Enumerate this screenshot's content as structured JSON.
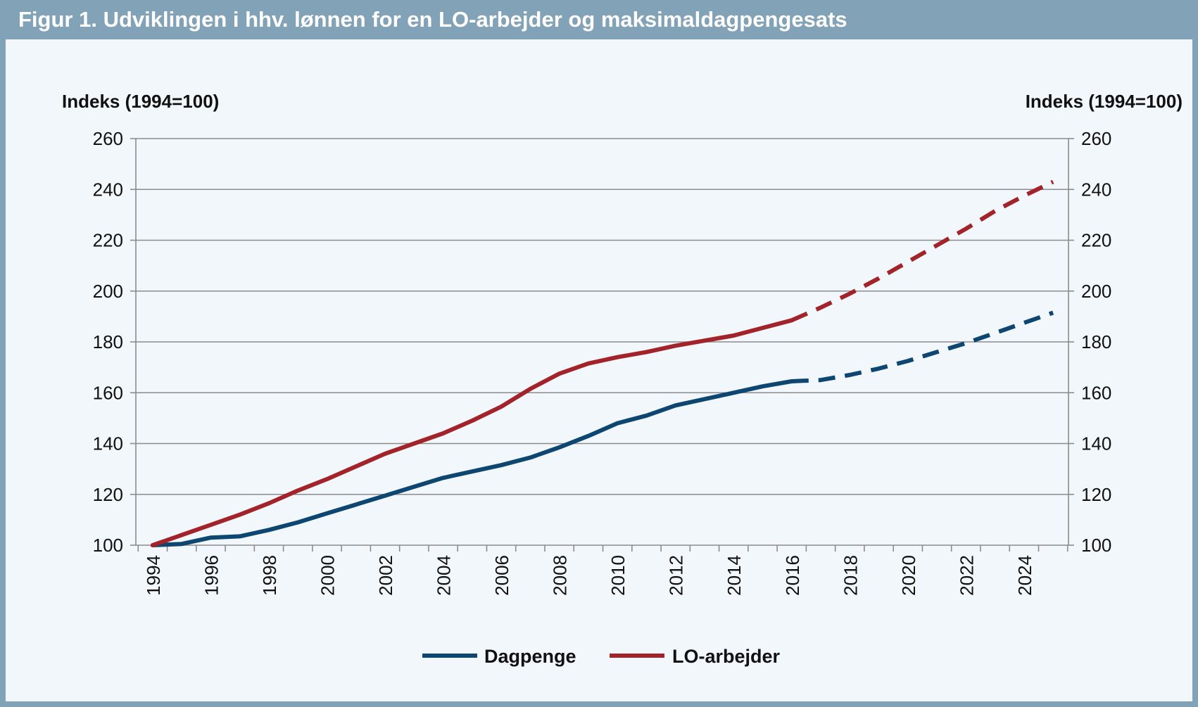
{
  "title": "Figur 1. Udviklingen i hhv. lønnen for en LO-arbejder og maksimaldagpengesats",
  "colors": {
    "frame": "#82a2b8",
    "background": "#f2f7fb",
    "dagpenge": "#0d4670",
    "lo_arbejder": "#a3232b",
    "grid": "#8c8c8c"
  },
  "chart_data": {
    "type": "line",
    "ylabel_left": "Indeks (1994=100)",
    "ylabel_right": "Indeks (1994=100)",
    "ylim": [
      100,
      260
    ],
    "yticks": [
      100,
      120,
      140,
      160,
      180,
      200,
      220,
      240,
      260
    ],
    "xlim": [
      1994,
      2025
    ],
    "xticks": [
      "1994",
      "1996",
      "1998",
      "2000",
      "2002",
      "2004",
      "2006",
      "2008",
      "2010",
      "2012",
      "2014",
      "2016",
      "2018",
      "2020",
      "2022",
      "2024"
    ],
    "grid": "horizontal",
    "legend_position": "bottom-center",
    "series": [
      {
        "name": "Dagpenge",
        "color": "#0d4670",
        "actual": {
          "x": [
            1994,
            1995,
            1996,
            1997,
            1998,
            1999,
            2000,
            2001,
            2002,
            2003,
            2004,
            2005,
            2006,
            2007,
            2008,
            2009,
            2010,
            2011,
            2012,
            2013,
            2014,
            2015,
            2016
          ],
          "y": [
            100,
            100.5,
            103,
            103.5,
            106,
            109,
            112.5,
            116,
            119.5,
            123,
            126.5,
            129,
            131.5,
            134.5,
            138.5,
            143,
            148,
            151,
            155,
            157.5,
            160,
            162.5,
            164.5
          ]
        },
        "forecast": {
          "x": [
            2016,
            2017,
            2018,
            2019,
            2020,
            2021,
            2022,
            2023,
            2024,
            2025
          ],
          "y": [
            164.5,
            165,
            167,
            169.5,
            172.5,
            176,
            179.5,
            183.5,
            187.5,
            191.5
          ]
        }
      },
      {
        "name": "LO-arbejder",
        "color": "#a3232b",
        "actual": {
          "x": [
            1994,
            1995,
            1996,
            1997,
            1998,
            1999,
            2000,
            2001,
            2002,
            2003,
            2004,
            2005,
            2006,
            2007,
            2008,
            2009,
            2010,
            2011,
            2012,
            2013,
            2014,
            2015,
            2016
          ],
          "y": [
            100,
            104,
            108,
            112,
            116.5,
            121.5,
            126,
            131,
            136,
            140,
            144,
            149,
            154.5,
            161.5,
            167.5,
            171.5,
            174,
            176,
            178.5,
            180.5,
            182.5,
            185.5,
            188.5
          ]
        },
        "forecast": {
          "x": [
            2016,
            2017,
            2018,
            2019,
            2020,
            2021,
            2022,
            2023,
            2024,
            2025
          ],
          "y": [
            188.5,
            193.5,
            199,
            205,
            211.5,
            218,
            224.5,
            231.5,
            237.5,
            243
          ]
        }
      }
    ]
  }
}
